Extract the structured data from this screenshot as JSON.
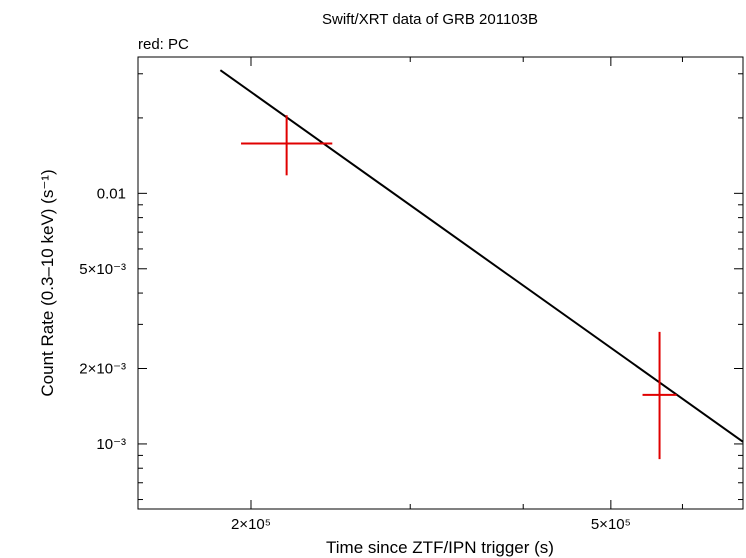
{
  "chart_data": {
    "type": "scatter",
    "title": "Swift/XRT data of GRB 201103B",
    "subtitle": "red: PC",
    "xlabel": "Time since ZTF/IPN trigger (s)",
    "ylabel": "Count Rate (0.3–10 keV) (s⁻¹)",
    "x_scale": "log",
    "y_scale": "log",
    "xlim": [
      150000,
      700000
    ],
    "ylim": [
      0.00055,
      0.035
    ],
    "x_tick_labels": [
      {
        "value": 200000,
        "label": "2×10⁵"
      },
      {
        "value": 500000,
        "label": "5×10⁵"
      }
    ],
    "y_tick_labels": [
      {
        "value": 0.001,
        "label": "10⁻³"
      },
      {
        "value": 0.002,
        "label": "2×10⁻³"
      },
      {
        "value": 0.005,
        "label": "5×10⁻³"
      },
      {
        "value": 0.01,
        "label": "0.01"
      }
    ],
    "grid": false,
    "series": [
      {
        "name": "PC",
        "color": "#e00000",
        "points": [
          {
            "x": 219000,
            "y": 0.0158,
            "xerr": [
              195000,
              246000
            ],
            "yerr": [
              0.0118,
              0.0205
            ]
          },
          {
            "x": 566000,
            "y": 0.00157,
            "xerr": [
              542000,
              591000
            ],
            "yerr": [
              0.00087,
              0.0028
            ]
          }
        ]
      }
    ],
    "model_line": {
      "color": "#000000",
      "points": [
        {
          "x": 185000,
          "y": 0.031
        },
        {
          "x": 700000,
          "y": 0.00102
        }
      ]
    }
  }
}
